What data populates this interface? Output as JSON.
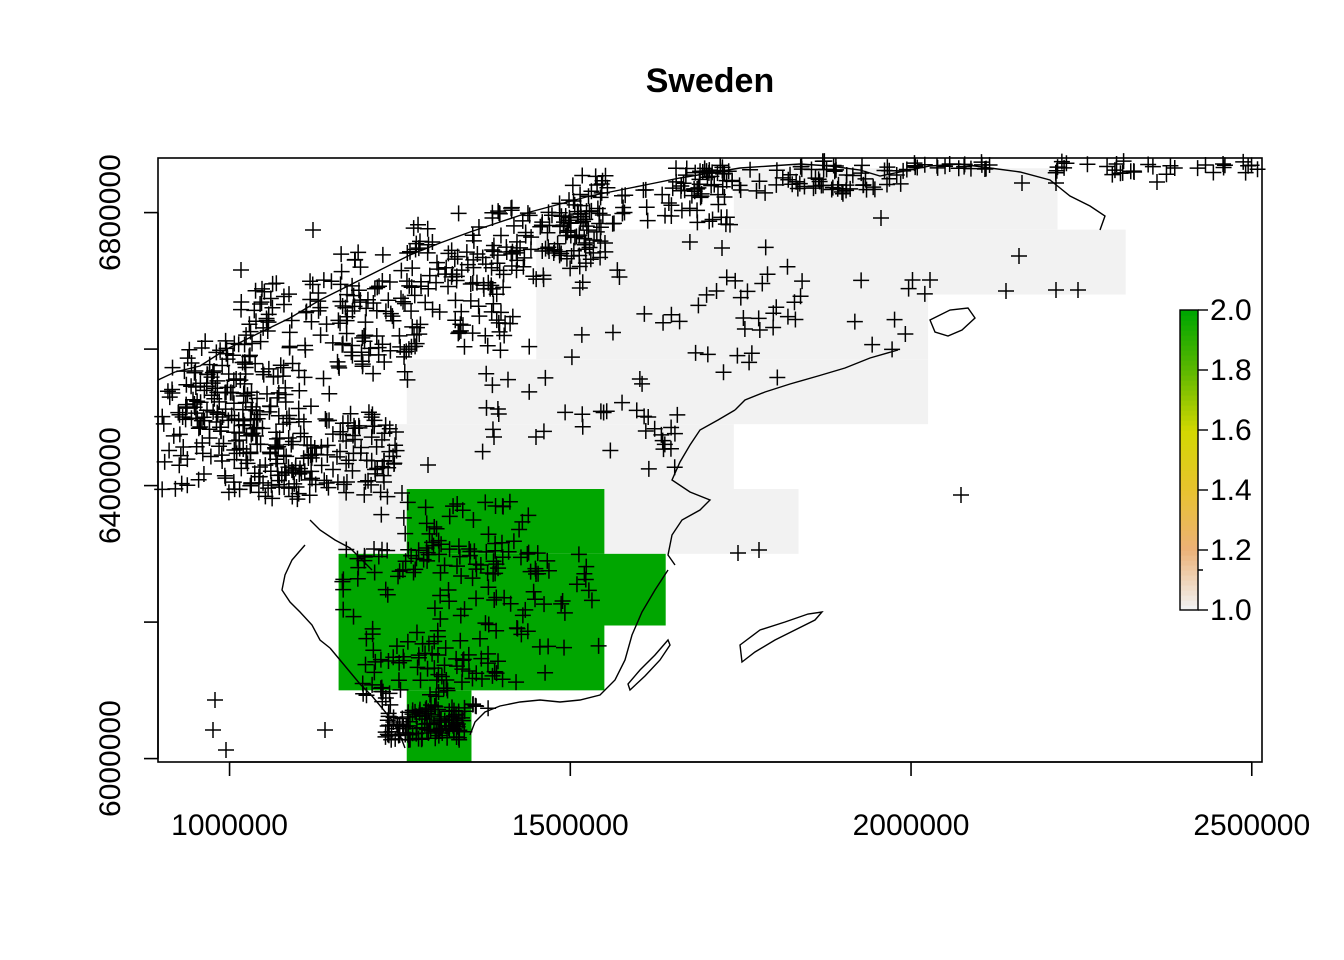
{
  "chart_data": {
    "type": "raster-map",
    "title": "Sweden",
    "xlim": [
      895000,
      2515000
    ],
    "ylim": [
      5995000,
      6880000
    ],
    "x_ticks": [
      1000000,
      1500000,
      2000000,
      2500000
    ],
    "x_tick_labels": [
      "1000000",
      "1500000",
      "2000000",
      "2500000"
    ],
    "y_ticks": [
      6000000,
      6200000,
      6400000,
      6600000,
      6800000
    ],
    "y_tick_labels": [
      "6000000",
      "",
      "6400000",
      "",
      "6800000"
    ],
    "legend": {
      "placement": "right",
      "min": 1.0,
      "max": 2.0,
      "ticks": [
        "1.0",
        "1.2",
        "1.4",
        "1.6",
        "1.8",
        "2.0"
      ],
      "colors": [
        "#f2f2f2",
        "#ecb176",
        "#e8c32e",
        "#d3d801",
        "#5fb800",
        "#00a600"
      ]
    },
    "cell_values": [
      {
        "x0": 1740000,
        "x1": 2215000,
        "y0": 6775000,
        "y1": 6865000,
        "value": 1.0
      },
      {
        "x0": 1450000,
        "x1": 2315000,
        "y0": 6680000,
        "y1": 6775000,
        "value": 1.0
      },
      {
        "x0": 1450000,
        "x1": 2025000,
        "y0": 6585000,
        "y1": 6680000,
        "value": 1.0
      },
      {
        "x0": 1260000,
        "x1": 2025000,
        "y0": 6490000,
        "y1": 6585000,
        "value": 1.0
      },
      {
        "x0": 1160000,
        "x1": 1740000,
        "y0": 6395000,
        "y1": 6490000,
        "value": 1.0
      },
      {
        "x0": 1160000,
        "x1": 1835000,
        "y0": 6300000,
        "y1": 6395000,
        "value": 1.0
      },
      {
        "x0": 1260000,
        "x1": 1550000,
        "y0": 6300000,
        "y1": 6395000,
        "value": 2.0
      },
      {
        "x0": 1160000,
        "x1": 1640000,
        "y0": 6195000,
        "y1": 6300000,
        "value": 2.0
      },
      {
        "x0": 1160000,
        "x1": 1550000,
        "y0": 6100000,
        "y1": 6195000,
        "value": 2.0
      },
      {
        "x0": 1260000,
        "x1": 1355000,
        "y0": 5995000,
        "y1": 6100000,
        "value": 2.0
      }
    ]
  }
}
